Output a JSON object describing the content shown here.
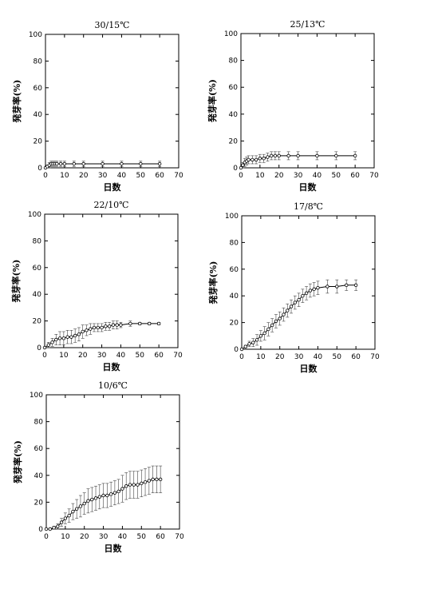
{
  "chart_data": [
    {
      "type": "line",
      "title": "30/15℃",
      "xlabel": "日数",
      "ylabel": "発芽率(%)",
      "xlim": [
        0,
        70
      ],
      "ylim": [
        0,
        100
      ],
      "xticks": [
        0,
        10,
        20,
        30,
        40,
        50,
        60,
        70
      ],
      "yticks": [
        0,
        20,
        40,
        60,
        80,
        100
      ],
      "grid": false,
      "series": [
        {
          "x": [
            0,
            1,
            2,
            3,
            4,
            5,
            6,
            8,
            10,
            15,
            20,
            30,
            40,
            50,
            60
          ],
          "y": [
            0,
            1,
            2,
            3,
            3,
            3,
            3,
            3,
            3,
            3,
            3,
            3,
            3,
            3,
            3
          ],
          "err": [
            0,
            1,
            2,
            2,
            2,
            2,
            2,
            2,
            2,
            2,
            2,
            2,
            2,
            2,
            2
          ]
        }
      ]
    },
    {
      "type": "line",
      "title": "25/13℃",
      "xlabel": "日数",
      "ylabel": "発芽率(%)",
      "xlim": [
        0,
        70
      ],
      "ylim": [
        0,
        100
      ],
      "xticks": [
        0,
        10,
        20,
        30,
        40,
        50,
        60,
        70
      ],
      "yticks": [
        0,
        20,
        40,
        60,
        80,
        100
      ],
      "grid": false,
      "series": [
        {
          "x": [
            0,
            1,
            2,
            3,
            4,
            6,
            8,
            10,
            12,
            14,
            16,
            18,
            20,
            25,
            30,
            40,
            50,
            60
          ],
          "y": [
            0,
            2,
            4,
            5,
            6,
            6,
            6,
            7,
            7,
            8,
            9,
            9,
            9,
            9,
            9,
            9,
            9,
            9
          ],
          "err": [
            0,
            2,
            3,
            3,
            3,
            3,
            3,
            3,
            3,
            3,
            3,
            3,
            3,
            3,
            3,
            3,
            3,
            3
          ]
        }
      ]
    },
    {
      "type": "line",
      "title": "22/10℃",
      "xlabel": "日数",
      "ylabel": "発芽率(%)",
      "xlim": [
        0,
        70
      ],
      "ylim": [
        0,
        100
      ],
      "xticks": [
        0,
        10,
        20,
        30,
        40,
        50,
        60,
        70
      ],
      "yticks": [
        0,
        20,
        40,
        60,
        80,
        100
      ],
      "grid": false,
      "series": [
        {
          "x": [
            0,
            2,
            4,
            6,
            8,
            10,
            12,
            14,
            16,
            18,
            20,
            22,
            24,
            26,
            28,
            30,
            32,
            34,
            36,
            38,
            40,
            45,
            50,
            55,
            60
          ],
          "y": [
            0,
            2,
            4,
            6,
            7,
            7,
            8,
            8,
            9,
            10,
            12,
            13,
            14,
            15,
            15,
            15,
            16,
            16,
            17,
            17,
            17,
            18,
            18,
            18,
            18
          ],
          "err": [
            0,
            2,
            3,
            4,
            5,
            5,
            5,
            5,
            5,
            5,
            5,
            4,
            4,
            3,
            3,
            3,
            3,
            3,
            3,
            3,
            2,
            2,
            1,
            1,
            1
          ]
        }
      ]
    },
    {
      "type": "line",
      "title": "17/8℃",
      "xlabel": "日数",
      "ylabel": "発芽率(%)",
      "xlim": [
        0,
        70
      ],
      "ylim": [
        0,
        100
      ],
      "xticks": [
        0,
        10,
        20,
        30,
        40,
        50,
        60,
        70
      ],
      "yticks": [
        0,
        20,
        40,
        60,
        80,
        100
      ],
      "grid": false,
      "series": [
        {
          "x": [
            0,
            2,
            4,
            6,
            8,
            10,
            12,
            14,
            16,
            18,
            20,
            22,
            24,
            26,
            28,
            30,
            32,
            34,
            36,
            38,
            40,
            45,
            50,
            55,
            60
          ],
          "y": [
            0,
            2,
            4,
            5,
            7,
            10,
            12,
            15,
            18,
            21,
            23,
            26,
            29,
            32,
            35,
            37,
            40,
            42,
            44,
            45,
            46,
            47,
            47,
            48,
            48
          ],
          "err": [
            0,
            1,
            2,
            3,
            4,
            4,
            5,
            5,
            5,
            5,
            5,
            5,
            5,
            5,
            5,
            5,
            5,
            5,
            5,
            5,
            5,
            5,
            5,
            4,
            4
          ]
        }
      ]
    },
    {
      "type": "line",
      "title": "10/6℃",
      "xlabel": "日数",
      "ylabel": "発芽率(%)",
      "xlim": [
        0,
        70
      ],
      "ylim": [
        0,
        100
      ],
      "xticks": [
        0,
        10,
        20,
        30,
        40,
        50,
        60,
        70
      ],
      "yticks": [
        0,
        20,
        40,
        60,
        80,
        100
      ],
      "grid": false,
      "series": [
        {
          "x": [
            0,
            2,
            4,
            6,
            8,
            10,
            12,
            14,
            16,
            18,
            20,
            22,
            24,
            26,
            28,
            30,
            32,
            34,
            36,
            38,
            40,
            42,
            44,
            46,
            48,
            50,
            52,
            54,
            56,
            58,
            60
          ],
          "y": [
            0,
            0,
            1,
            2,
            5,
            8,
            10,
            13,
            15,
            17,
            19,
            21,
            22,
            23,
            24,
            25,
            25,
            26,
            27,
            28,
            30,
            32,
            33,
            33,
            33,
            34,
            35,
            36,
            37,
            37,
            37
          ],
          "err": [
            0,
            0,
            1,
            2,
            3,
            4,
            5,
            6,
            7,
            8,
            8,
            9,
            9,
            9,
            9,
            9,
            9,
            9,
            9,
            9,
            10,
            10,
            10,
            10,
            10,
            10,
            10,
            10,
            10,
            10,
            10
          ]
        }
      ]
    }
  ]
}
